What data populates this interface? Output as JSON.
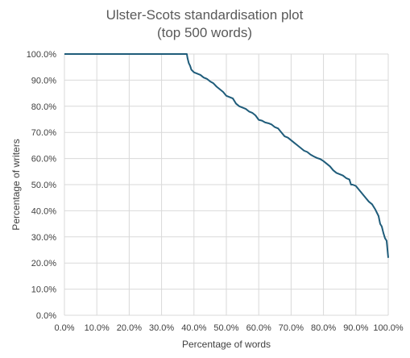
{
  "chart_data": {
    "type": "line",
    "title": [
      "Ulster-Scots standardisation plot",
      "(top 500 words)"
    ],
    "xlabel": "Percentage of words",
    "ylabel": "Percentage of writers",
    "xlim": [
      0,
      100
    ],
    "ylim": [
      0,
      100
    ],
    "x_ticks": [
      0,
      10,
      20,
      30,
      40,
      50,
      60,
      70,
      80,
      90,
      100
    ],
    "y_ticks": [
      0,
      10,
      20,
      30,
      40,
      50,
      60,
      70,
      80,
      90,
      100
    ],
    "x_tick_labels": [
      "0.0%",
      "10.0%",
      "20.0%",
      "30.0%",
      "40.0%",
      "50.0%",
      "60.0%",
      "70.0%",
      "80.0%",
      "90.0%",
      "100.0%"
    ],
    "y_tick_labels": [
      "0.0%",
      "10.0%",
      "20.0%",
      "30.0%",
      "40.0%",
      "50.0%",
      "60.0%",
      "70.0%",
      "80.0%",
      "90.0%",
      "100.0%"
    ],
    "grid": true,
    "legend": "none",
    "series": [
      {
        "color": "#1f5c7a",
        "x": [
          0,
          37.8,
          38.0,
          38.4,
          38.8,
          39.2,
          40,
          41,
          42,
          43,
          44,
          45,
          46,
          47,
          48,
          49,
          50,
          51,
          52,
          53,
          54,
          55,
          56,
          57,
          58,
          59,
          60,
          61,
          62,
          63,
          64,
          65,
          66,
          67,
          68,
          69,
          70,
          71,
          72,
          73,
          74,
          75,
          76,
          77,
          78,
          79,
          80,
          81,
          82,
          83,
          84,
          85,
          86,
          87,
          88,
          88.5,
          89,
          90,
          91,
          92,
          93,
          94,
          95,
          96,
          97,
          97.5,
          98,
          98.5,
          99,
          99.5,
          100
        ],
        "y": [
          100,
          100,
          98.5,
          96.5,
          95.5,
          94.0,
          93.0,
          92.5,
          92.0,
          91.0,
          90.5,
          89.5,
          88.8,
          87.5,
          86.5,
          85.5,
          84.0,
          83.5,
          83.0,
          81.0,
          80.0,
          79.5,
          79.0,
          78.0,
          77.5,
          76.5,
          74.8,
          74.5,
          73.8,
          73.5,
          73.0,
          72.0,
          71.5,
          70.0,
          68.5,
          68.0,
          67.0,
          66.0,
          65.0,
          64.0,
          63.0,
          62.5,
          61.5,
          60.8,
          60.2,
          59.8,
          59.0,
          58.0,
          57.0,
          55.5,
          54.5,
          54.0,
          53.5,
          52.5,
          52.0,
          50.0,
          50.0,
          49.5,
          48.0,
          46.5,
          45.0,
          43.5,
          42.5,
          40.5,
          38.0,
          35.0,
          34.0,
          31.5,
          29.5,
          28.5,
          22.0
        ]
      }
    ]
  }
}
